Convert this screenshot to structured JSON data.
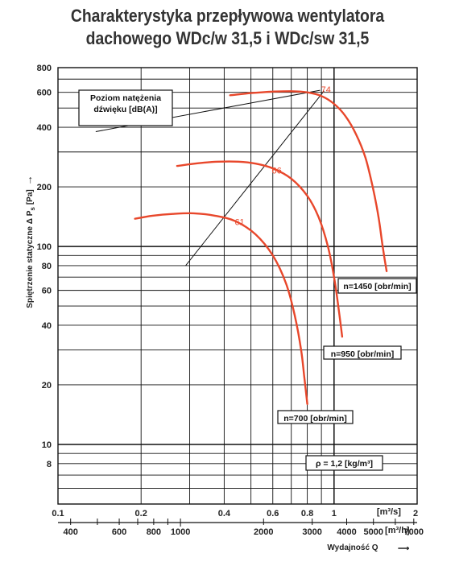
{
  "title_line1": "Charakterystyka przepływowa wentylatora",
  "title_line2": "dachowego WDc/w 31,5 i WDc/sw 31,5",
  "chart_data": {
    "type": "line",
    "ylabel": "Spiętrzenie statyczne Δ Ps [Pa] →",
    "ylabel_main": "Spiętrzenie statyczne Δ P",
    "ylabel_sub": "s",
    "ylabel_unit": "[Pa]",
    "ylabel_arrow": "→",
    "x_unit_top": "[m³/s]",
    "x_unit_bottom": "[m³/h]",
    "xlabel_bottom": "Wydajność Q",
    "xlabel_arrow": "⟶",
    "y_scale": "log",
    "x_scale": "log",
    "ylim": [
      5,
      800
    ],
    "xlim": [
      0.1,
      2
    ],
    "grid": true,
    "y_ticks": [
      "800",
      "600",
      "400",
      "200",
      "100",
      "80",
      "60",
      "40",
      "20",
      "10",
      "8"
    ],
    "x_ticks_top": [
      "0.1",
      "0.2",
      "0.4",
      "0.6",
      "0.8",
      "1",
      "2"
    ],
    "x_ticks_bottom": [
      "400",
      "600",
      "800",
      "1000",
      "2000",
      "3000",
      "4000",
      "5000",
      "7000"
    ],
    "sound_label_line1": "Poziom natężenia",
    "sound_label_line2": "dźwięku [dB(A)]",
    "density_label": "ρ = 1,2 [kg/m³]",
    "series": [
      {
        "name": "n=1450 [obr/min]",
        "color": "#e8472b",
        "x": [
          0.42,
          0.5,
          0.6,
          0.7,
          0.8,
          0.9,
          1.0,
          1.1,
          1.2,
          1.3,
          1.38,
          1.45,
          1.5,
          1.55
        ],
        "y": [
          580,
          595,
          605,
          608,
          600,
          575,
          525,
          455,
          370,
          280,
          200,
          140,
          100,
          75
        ]
      },
      {
        "name": "n=950 [obr/min]",
        "color": "#e8472b",
        "x": [
          0.27,
          0.32,
          0.38,
          0.45,
          0.52,
          0.6,
          0.7,
          0.8,
          0.88,
          0.95,
          1.0,
          1.04,
          1.07
        ],
        "y": [
          255,
          263,
          268,
          268,
          262,
          248,
          220,
          180,
          140,
          100,
          70,
          48,
          35
        ]
      },
      {
        "name": "n=700 [obr/min]",
        "color": "#e8472b",
        "x": [
          0.19,
          0.22,
          0.26,
          0.31,
          0.37,
          0.44,
          0.52,
          0.6,
          0.67,
          0.72,
          0.76,
          0.78,
          0.8
        ],
        "y": [
          138,
          143,
          146,
          147,
          143,
          134,
          115,
          90,
          65,
          45,
          30,
          22,
          16
        ]
      }
    ],
    "sound_levels": [
      {
        "label": "74",
        "x": 0.935,
        "y": 622
      },
      {
        "label": "66",
        "x": 0.62,
        "y": 243
      },
      {
        "label": "61",
        "x": 0.455,
        "y": 133
      }
    ],
    "reference_lines": [
      {
        "x": [
          0.29,
          0.92
        ],
        "y": [
          80,
          610
        ]
      },
      {
        "x": [
          0.137,
          0.89
        ],
        "y": [
          380,
          615
        ]
      }
    ]
  }
}
